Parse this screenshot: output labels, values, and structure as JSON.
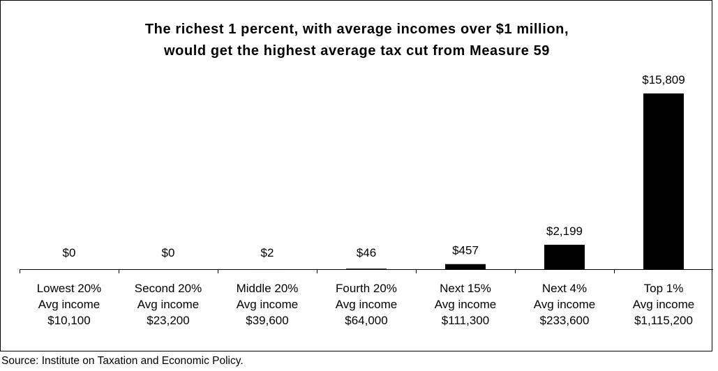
{
  "chart_data": {
    "type": "bar",
    "title": [
      "The richest 1 percent, with average incomes over $1 million,",
      "would get the highest average tax cut from Measure 59"
    ],
    "categories": [
      [
        "Lowest 20%",
        "Avg income",
        "$10,100"
      ],
      [
        "Second 20%",
        "Avg income",
        "$23,200"
      ],
      [
        "Middle 20%",
        "Avg income",
        "$39,600"
      ],
      [
        "Fourth 20%",
        "Avg income",
        "$64,000"
      ],
      [
        "Next 15%",
        "Avg income",
        "$111,300"
      ],
      [
        "Next 4%",
        "Avg income",
        "$233,600"
      ],
      [
        "Top 1%",
        "Avg income",
        "$1,115,200"
      ]
    ],
    "values": [
      0,
      0,
      2,
      46,
      457,
      2199,
      15809
    ],
    "data_labels": [
      "$0",
      "$0",
      "$2",
      "$46",
      "$457",
      "$2,199",
      "$15,809"
    ],
    "ylim": [
      0,
      15809
    ],
    "bar_color": "#000000",
    "grid": false,
    "legend": "none"
  },
  "source": "Source: Institute on Taxation and Economic Policy."
}
